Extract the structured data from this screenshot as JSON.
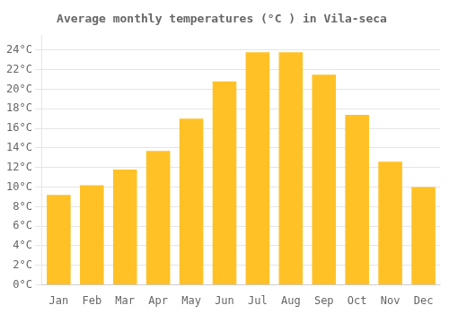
{
  "chart_data": {
    "type": "bar",
    "title": "Average monthly temperatures (°C ) in Vila-seca",
    "categories": [
      "Jan",
      "Feb",
      "Mar",
      "Apr",
      "May",
      "Jun",
      "Jul",
      "Aug",
      "Sep",
      "Oct",
      "Nov",
      "Dec"
    ],
    "values": [
      9.2,
      10.2,
      11.8,
      13.7,
      17.0,
      20.8,
      23.8,
      23.8,
      21.5,
      17.4,
      12.6,
      10.0
    ],
    "color": "#FFC125",
    "ylim": [
      0,
      25.5
    ],
    "yticks": [
      {
        "value": 0,
        "label": "0°C"
      },
      {
        "value": 2,
        "label": "2°C"
      },
      {
        "value": 4,
        "label": "4°C"
      },
      {
        "value": 6,
        "label": "6°C"
      },
      {
        "value": 8,
        "label": "8°C"
      },
      {
        "value": 10,
        "label": "10°C"
      },
      {
        "value": 12,
        "label": "12°C"
      },
      {
        "value": 14,
        "label": "14°C"
      },
      {
        "value": 16,
        "label": "16°C"
      },
      {
        "value": 18,
        "label": "18°C"
      },
      {
        "value": 20,
        "label": "20°C"
      },
      {
        "value": 22,
        "label": "22°C"
      },
      {
        "value": 24,
        "label": "24°C"
      }
    ],
    "grid": true
  }
}
